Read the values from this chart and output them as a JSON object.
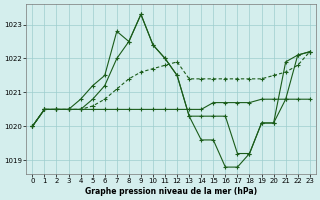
{
  "title": "Graphe pression niveau de la mer (hPa)",
  "background_color": "#d4eeed",
  "grid_color": "#9ecece",
  "line_color": "#1a5c1a",
  "xlim": [
    -0.5,
    23.5
  ],
  "ylim": [
    1018.6,
    1023.6
  ],
  "yticks": [
    1019,
    1020,
    1021,
    1022,
    1023
  ],
  "xticks": [
    0,
    1,
    2,
    3,
    4,
    5,
    6,
    7,
    8,
    9,
    10,
    11,
    12,
    13,
    14,
    15,
    16,
    17,
    18,
    19,
    20,
    21,
    22,
    23
  ],
  "s1_x": [
    0,
    1,
    2,
    3,
    4,
    5,
    6,
    7,
    8,
    9,
    10,
    11,
    12,
    13,
    14,
    15,
    16,
    17,
    18,
    19,
    20,
    21,
    22,
    23
  ],
  "s1_y": [
    1020.0,
    1020.5,
    1020.5,
    1020.5,
    1020.5,
    1020.5,
    1020.5,
    1020.5,
    1020.5,
    1020.5,
    1020.5,
    1020.5,
    1020.5,
    1020.5,
    1020.5,
    1020.7,
    1020.7,
    1020.7,
    1020.7,
    1020.8,
    1020.8,
    1020.8,
    1020.8,
    1020.8
  ],
  "s1_style": "solid",
  "s2_x": [
    0,
    1,
    2,
    3,
    4,
    5,
    6,
    7,
    8,
    9,
    10,
    11,
    12,
    13,
    14,
    15,
    16,
    17,
    18,
    19,
    20,
    21,
    22,
    23
  ],
  "s2_y": [
    1020.0,
    1020.5,
    1020.5,
    1020.5,
    1020.5,
    1020.6,
    1020.8,
    1021.1,
    1021.4,
    1021.6,
    1021.7,
    1021.8,
    1021.9,
    1021.4,
    1021.4,
    1021.4,
    1021.4,
    1021.4,
    1021.4,
    1021.4,
    1021.5,
    1021.6,
    1021.8,
    1022.2
  ],
  "s2_style": "dashed",
  "s3_x": [
    0,
    1,
    2,
    3,
    4,
    5,
    6,
    7,
    8,
    9,
    10,
    11,
    12,
    13,
    14,
    15,
    16,
    17,
    18,
    19,
    20,
    21,
    22,
    23
  ],
  "s3_y": [
    1020.0,
    1020.5,
    1020.5,
    1020.5,
    1020.8,
    1021.2,
    1021.5,
    1022.8,
    1022.5,
    1023.3,
    1022.4,
    1022.0,
    1021.5,
    1020.3,
    1019.6,
    1019.6,
    1018.8,
    1018.8,
    1019.2,
    1020.1,
    1020.1,
    1021.9,
    1022.1,
    1022.2
  ],
  "s3_style": "solid",
  "s4_x": [
    0,
    1,
    2,
    3,
    4,
    5,
    6,
    7,
    8,
    9,
    10,
    11,
    12,
    13,
    14,
    15,
    16,
    17,
    18,
    19,
    20,
    21,
    22,
    23
  ],
  "s4_y": [
    1020.0,
    1020.5,
    1020.5,
    1020.5,
    1020.5,
    1020.8,
    1021.2,
    1022.0,
    1022.5,
    1023.3,
    1022.4,
    1022.0,
    1021.5,
    1020.3,
    1020.3,
    1020.3,
    1020.3,
    1019.2,
    1019.2,
    1020.1,
    1020.1,
    1020.8,
    1022.1,
    1022.2
  ],
  "s4_style": "solid"
}
